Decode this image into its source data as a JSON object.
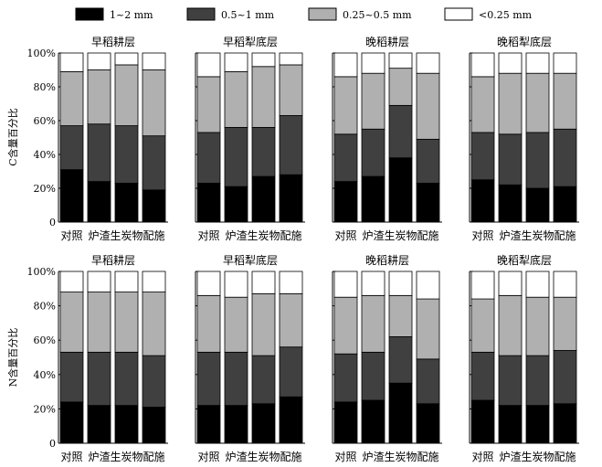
{
  "chart_data": {
    "type": "bar",
    "stacked": true,
    "legend": [
      {
        "label": "1~2 mm",
        "color": "#000000"
      },
      {
        "label": "0.5~1 mm",
        "color": "#404040"
      },
      {
        "label": "0.25~0.5 mm",
        "color": "#b0b0b0"
      },
      {
        "label": "<0.25 mm",
        "color": "#ffffff"
      }
    ],
    "categories": [
      "对照",
      "炉渣",
      "生炭物",
      "配施"
    ],
    "yticks": [
      "0",
      "20%",
      "40%",
      "60%",
      "80%",
      "100%"
    ],
    "ylim": [
      0,
      100
    ],
    "rows": [
      {
        "ylabel": "C含量百分比",
        "panels": [
          {
            "title": "早稻耕层",
            "values": [
              [
                31,
                26,
                32,
                11
              ],
              [
                24,
                34,
                32,
                10
              ],
              [
                23,
                34,
                36,
                7
              ],
              [
                19,
                32,
                39,
                10
              ]
            ]
          },
          {
            "title": "早稻犁底层",
            "values": [
              [
                23,
                30,
                33,
                14
              ],
              [
                21,
                35,
                33,
                11
              ],
              [
                27,
                29,
                36,
                8
              ],
              [
                28,
                35,
                30,
                7
              ]
            ]
          },
          {
            "title": "晚稻耕层",
            "values": [
              [
                24,
                28,
                34,
                14
              ],
              [
                27,
                28,
                33,
                12
              ],
              [
                38,
                31,
                22,
                9
              ],
              [
                23,
                26,
                39,
                12
              ]
            ]
          },
          {
            "title": "晚稻犁底层",
            "values": [
              [
                25,
                28,
                33,
                14
              ],
              [
                22,
                30,
                36,
                12
              ],
              [
                20,
                33,
                35,
                12
              ],
              [
                21,
                34,
                33,
                12
              ]
            ]
          }
        ]
      },
      {
        "ylabel": "N含量百分比",
        "panels": [
          {
            "title": "早稻耕层",
            "values": [
              [
                24,
                29,
                35,
                12
              ],
              [
                22,
                31,
                35,
                12
              ],
              [
                22,
                31,
                35,
                12
              ],
              [
                21,
                30,
                37,
                12
              ]
            ]
          },
          {
            "title": "早稻犁底层",
            "values": [
              [
                22,
                31,
                33,
                14
              ],
              [
                22,
                31,
                32,
                15
              ],
              [
                23,
                28,
                36,
                13
              ],
              [
                27,
                29,
                31,
                13
              ]
            ]
          },
          {
            "title": "晚稻耕层",
            "values": [
              [
                24,
                28,
                33,
                15
              ],
              [
                25,
                28,
                33,
                14
              ],
              [
                35,
                27,
                24,
                14
              ],
              [
                23,
                26,
                35,
                16
              ]
            ]
          },
          {
            "title": "晚稻犁底层",
            "values": [
              [
                25,
                28,
                31,
                16
              ],
              [
                22,
                29,
                35,
                14
              ],
              [
                22,
                29,
                34,
                15
              ],
              [
                23,
                31,
                31,
                15
              ]
            ]
          }
        ]
      }
    ]
  }
}
